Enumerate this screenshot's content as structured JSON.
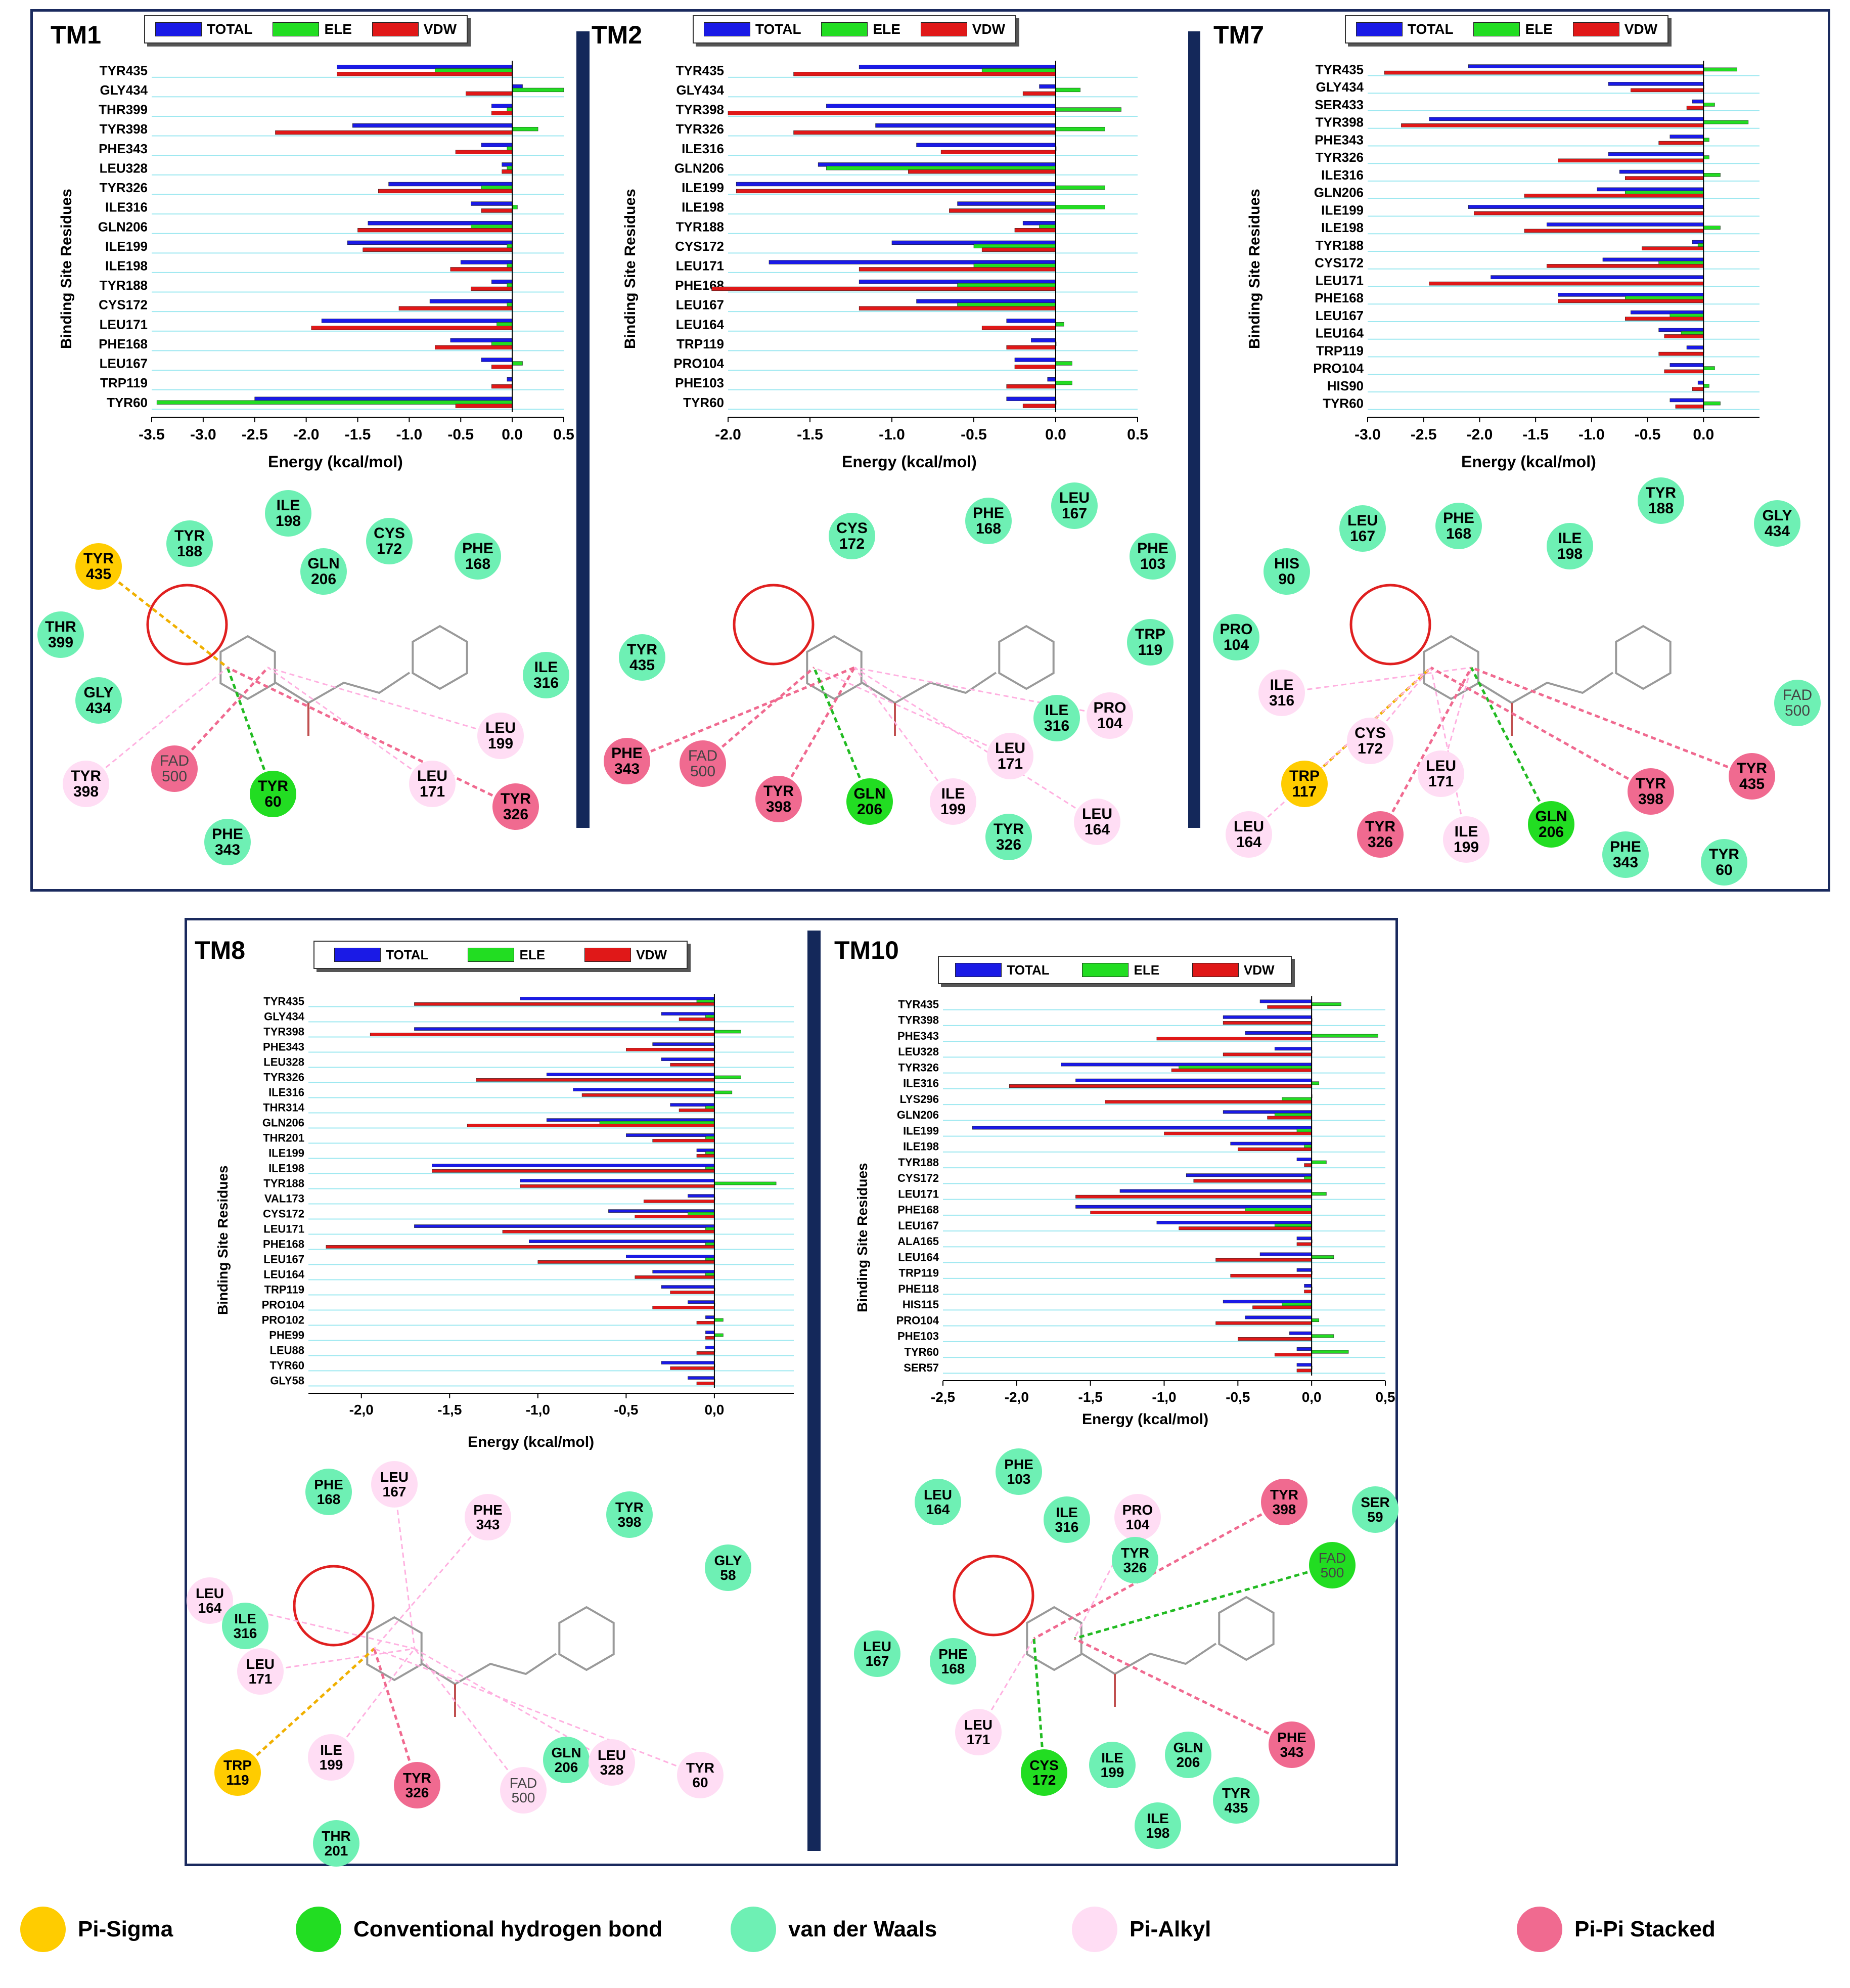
{
  "colors": {
    "total": "#1a1ae6",
    "ele": "#22dd22",
    "vdw": "#e01818",
    "grid": "#9ee8f0",
    "vdw_node": "#6ef0b4",
    "hbond_node": "#22dd22",
    "pisigma_node": "#ffcc00",
    "pialkyl_node": "#ffddf4",
    "pipi_node": "#f06a90"
  },
  "legend_labels": {
    "total": "TOTAL",
    "ele": "ELE",
    "vdw": "VDW"
  },
  "bottom_legend": [
    {
      "label": "Pi-Sigma",
      "color": "#ffcc00"
    },
    {
      "label": "Conventional hydrogen bond",
      "color": "#22dd22"
    },
    {
      "label": "van der Waals",
      "color": "#6ef0b4"
    },
    {
      "label": "Pi-Alkyl",
      "color": "#ffddf4"
    },
    {
      "label": "Pi-Pi Stacked",
      "color": "#f06a90"
    }
  ],
  "chart_data": [
    {
      "title": "TM1",
      "type": "bar",
      "orientation": "horizontal",
      "xlabel": "Energy (kcal/mol)",
      "ylabel": "Binding Site Residues",
      "xlim": [
        -3.5,
        0.5
      ],
      "ticks": [
        "-3.5",
        "-3.0",
        "-2.5",
        "-2.0",
        "-1.5",
        "-1.0",
        "-0.5",
        "0.0",
        "0.5"
      ],
      "categories": [
        "TYR435",
        "GLY434",
        "THR399",
        "TYR398",
        "PHE343",
        "LEU328",
        "TYR326",
        "ILE316",
        "GLN206",
        "ILE199",
        "ILE198",
        "TYR188",
        "CYS172",
        "LEU171",
        "PHE168",
        "LEU167",
        "TRP119",
        "TYR60"
      ],
      "series": [
        {
          "name": "TOTAL",
          "values": [
            -1.7,
            0.1,
            -0.2,
            -1.55,
            -0.3,
            -0.1,
            -1.2,
            -0.4,
            -1.4,
            -1.6,
            -0.5,
            -0.2,
            -0.8,
            -1.85,
            -0.6,
            -0.3,
            -0.05,
            -2.5
          ]
        },
        {
          "name": "ELE",
          "values": [
            -0.75,
            0.5,
            -0.05,
            0.25,
            -0.05,
            -0.05,
            -0.3,
            0.05,
            -0.4,
            -0.05,
            -0.05,
            -0.05,
            -0.05,
            -0.15,
            -0.2,
            0.1,
            0.0,
            -3.45
          ]
        },
        {
          "name": "VDW",
          "values": [
            -1.7,
            -0.45,
            -0.2,
            -2.3,
            -0.55,
            -0.1,
            -1.3,
            -0.3,
            -1.5,
            -1.45,
            -0.6,
            -0.4,
            -1.1,
            -1.95,
            -0.75,
            -0.2,
            -0.2,
            -0.55
          ]
        }
      ],
      "interactions": [
        {
          "res": "TYR",
          "num": "435",
          "type": "ps"
        },
        {
          "res": "TYR",
          "num": "188",
          "type": "vdw"
        },
        {
          "res": "ILE",
          "num": "198",
          "type": "vdw"
        },
        {
          "res": "GLN",
          "num": "206",
          "type": "vdw"
        },
        {
          "res": "CYS",
          "num": "172",
          "type": "vdw"
        },
        {
          "res": "PHE",
          "num": "168",
          "type": "vdw"
        },
        {
          "res": "THR",
          "num": "399",
          "type": "vdw"
        },
        {
          "res": "GLY",
          "num": "434",
          "type": "vdw"
        },
        {
          "res": "ILE",
          "num": "316",
          "type": "vdw"
        },
        {
          "res": "LEU",
          "num": "199",
          "type": "pa"
        },
        {
          "res": "TYR",
          "num": "398",
          "type": "pa"
        },
        {
          "res": "FAD",
          "num": "500",
          "type": "pp"
        },
        {
          "res": "TYR",
          "num": "60",
          "type": "hb"
        },
        {
          "res": "LEU",
          "num": "171",
          "type": "pa"
        },
        {
          "res": "TYR",
          "num": "326",
          "type": "pp"
        },
        {
          "res": "PHE",
          "num": "343",
          "type": "vdw"
        }
      ]
    },
    {
      "title": "TM2",
      "type": "bar",
      "orientation": "horizontal",
      "xlabel": "Energy (kcal/mol)",
      "ylabel": "Binding Site Residues",
      "xlim": [
        -2.0,
        0.5
      ],
      "ticks": [
        "-2.0",
        "-1.5",
        "-1.0",
        "-0.5",
        "0.0",
        "0.5"
      ],
      "categories": [
        "TYR435",
        "GLY434",
        "TYR398",
        "TYR326",
        "ILE316",
        "GLN206",
        "ILE199",
        "ILE198",
        "TYR188",
        "CYS172",
        "LEU171",
        "PHE168",
        "LEU167",
        "LEU164",
        "TRP119",
        "PRO104",
        "PHE103",
        "TYR60"
      ],
      "series": [
        {
          "name": "TOTAL",
          "values": [
            -1.2,
            -0.1,
            -1.4,
            -1.1,
            -0.85,
            -1.45,
            -1.95,
            -0.6,
            -0.2,
            -1.0,
            -1.75,
            -1.2,
            -0.85,
            -0.3,
            -0.15,
            -0.25,
            -0.05,
            -0.3
          ]
        },
        {
          "name": "ELE",
          "values": [
            -0.45,
            0.15,
            0.4,
            0.3,
            0.0,
            -1.4,
            0.3,
            0.3,
            -0.1,
            -0.5,
            -0.5,
            -0.6,
            -0.6,
            0.05,
            0.0,
            0.1,
            0.1,
            0.0
          ]
        },
        {
          "name": "VDW",
          "values": [
            -1.6,
            -0.2,
            -2.0,
            -1.6,
            -0.7,
            -0.9,
            -1.95,
            -0.65,
            -0.25,
            -0.45,
            -1.2,
            -2.1,
            -1.2,
            -0.45,
            -0.3,
            -0.25,
            -0.3,
            -0.2
          ]
        }
      ],
      "interactions": [
        {
          "res": "CYS",
          "num": "172",
          "type": "vdw"
        },
        {
          "res": "PHE",
          "num": "168",
          "type": "vdw"
        },
        {
          "res": "LEU",
          "num": "167",
          "type": "vdw"
        },
        {
          "res": "PHE",
          "num": "103",
          "type": "vdw"
        },
        {
          "res": "TRP",
          "num": "119",
          "type": "vdw"
        },
        {
          "res": "TYR",
          "num": "435",
          "type": "vdw"
        },
        {
          "res": "ILE",
          "num": "316",
          "type": "vdw"
        },
        {
          "res": "PRO",
          "num": "104",
          "type": "pa"
        },
        {
          "res": "LEU",
          "num": "171",
          "type": "pa"
        },
        {
          "res": "PHE",
          "num": "343",
          "type": "pp"
        },
        {
          "res": "FAD",
          "num": "500",
          "type": "pp"
        },
        {
          "res": "TYR",
          "num": "398",
          "type": "pp"
        },
        {
          "res": "GLN",
          "num": "206",
          "type": "hb"
        },
        {
          "res": "ILE",
          "num": "199",
          "type": "pa"
        },
        {
          "res": "TYR",
          "num": "326",
          "type": "vdw"
        },
        {
          "res": "LEU",
          "num": "164",
          "type": "pa"
        }
      ]
    },
    {
      "title": "TM7",
      "type": "bar",
      "orientation": "horizontal",
      "xlabel": "Energy (kcal/mol)",
      "ylabel": "Binding Site Residues",
      "xlim": [
        -3.0,
        0.5
      ],
      "ticks": [
        "-3.0",
        "-2.5",
        "-2.0",
        "-1.5",
        "-1.0",
        "-0.5",
        "0.0"
      ],
      "categories": [
        "TYR435",
        "GLY434",
        "SER433",
        "TYR398",
        "PHE343",
        "TYR326",
        "ILE316",
        "GLN206",
        "ILE199",
        "ILE198",
        "TYR188",
        "CYS172",
        "LEU171",
        "PHE168",
        "LEU167",
        "LEU164",
        "TRP119",
        "PRO104",
        "HIS90",
        "TYR60"
      ],
      "series": [
        {
          "name": "TOTAL",
          "values": [
            -2.1,
            -0.85,
            -0.1,
            -2.45,
            -0.3,
            -0.85,
            -0.75,
            -0.95,
            -2.1,
            -1.4,
            -0.1,
            -0.9,
            -1.9,
            -1.3,
            -0.65,
            -0.4,
            -0.15,
            -0.3,
            -0.05,
            -0.3
          ]
        },
        {
          "name": "ELE",
          "values": [
            0.3,
            0.0,
            0.1,
            0.4,
            0.05,
            0.05,
            0.15,
            -0.7,
            0.0,
            0.15,
            -0.05,
            -0.4,
            0.0,
            -0.7,
            -0.3,
            -0.2,
            0.0,
            0.1,
            0.05,
            0.15
          ]
        },
        {
          "name": "VDW",
          "values": [
            -2.85,
            -0.65,
            -0.15,
            -2.7,
            -0.4,
            -1.3,
            -0.7,
            -1.6,
            -2.05,
            -1.6,
            -0.55,
            -1.4,
            -2.45,
            -1.3,
            -0.7,
            -0.35,
            -0.4,
            -0.35,
            -0.1,
            -0.25
          ]
        }
      ],
      "interactions": [
        {
          "res": "LEU",
          "num": "167",
          "type": "vdw"
        },
        {
          "res": "PHE",
          "num": "168",
          "type": "vdw"
        },
        {
          "res": "TYR",
          "num": "188",
          "type": "vdw"
        },
        {
          "res": "ILE",
          "num": "198",
          "type": "vdw"
        },
        {
          "res": "GLY",
          "num": "434",
          "type": "vdw"
        },
        {
          "res": "HIS",
          "num": "90",
          "type": "vdw"
        },
        {
          "res": "PRO",
          "num": "104",
          "type": "vdw"
        },
        {
          "res": "ILE",
          "num": "316",
          "type": "pa"
        },
        {
          "res": "CYS",
          "num": "172",
          "type": "pa"
        },
        {
          "res": "LEU",
          "num": "171",
          "type": "pa"
        },
        {
          "res": "TRP",
          "num": "117",
          "type": "ps"
        },
        {
          "res": "FAD",
          "num": "500",
          "type": "vdw"
        },
        {
          "res": "LEU",
          "num": "164",
          "type": "pa"
        },
        {
          "res": "TYR",
          "num": "326",
          "type": "pp"
        },
        {
          "res": "ILE",
          "num": "199",
          "type": "pa"
        },
        {
          "res": "GLN",
          "num": "206",
          "type": "hb"
        },
        {
          "res": "TYR",
          "num": "398",
          "type": "pp"
        },
        {
          "res": "TYR",
          "num": "435",
          "type": "pp"
        },
        {
          "res": "PHE",
          "num": "343",
          "type": "vdw"
        },
        {
          "res": "TYR",
          "num": "60",
          "type": "vdw"
        }
      ]
    },
    {
      "title": "TM8",
      "type": "bar",
      "orientation": "horizontal",
      "xlabel": "Energy (kcal/mol)",
      "ylabel": "Binding Site Residues",
      "xlim": [
        -2.3,
        0.45
      ],
      "ticks": [
        "-2,0",
        "-1,5",
        "-1,0",
        "-0,5",
        "0,0"
      ],
      "categories": [
        "TYR435",
        "GLY434",
        "TYR398",
        "PHE343",
        "LEU328",
        "TYR326",
        "ILE316",
        "THR314",
        "GLN206",
        "THR201",
        "ILE199",
        "ILE198",
        "TYR188",
        "VAL173",
        "CYS172",
        "LEU171",
        "PHE168",
        "LEU167",
        "LEU164",
        "TRP119",
        "PRO104",
        "PRO102",
        "PHE99",
        "LEU88",
        "TYR60",
        "GLY58"
      ],
      "series": [
        {
          "name": "TOTAL",
          "values": [
            -1.1,
            -0.3,
            -1.7,
            -0.35,
            -0.3,
            -0.95,
            -0.8,
            -0.25,
            -0.95,
            -0.5,
            -0.1,
            -1.6,
            -1.1,
            -0.15,
            -0.6,
            -1.7,
            -1.05,
            -0.5,
            -0.35,
            -0.3,
            -0.15,
            -0.05,
            -0.05,
            -0.05,
            -0.3,
            -0.15
          ]
        },
        {
          "name": "ELE",
          "values": [
            -0.1,
            -0.05,
            0.15,
            0.0,
            0.0,
            0.15,
            0.1,
            -0.05,
            -0.65,
            -0.05,
            -0.05,
            -0.05,
            0.35,
            0.0,
            -0.15,
            -0.05,
            -0.05,
            -0.05,
            -0.05,
            0.0,
            0.0,
            0.05,
            0.05,
            0.0,
            0.0,
            0.0
          ]
        },
        {
          "name": "VDW",
          "values": [
            -1.7,
            -0.2,
            -1.95,
            -0.5,
            -0.25,
            -1.35,
            -0.75,
            -0.2,
            -1.4,
            -0.35,
            -0.1,
            -1.6,
            -1.1,
            -0.4,
            -0.45,
            -1.2,
            -2.2,
            -1.0,
            -0.45,
            -0.25,
            -0.35,
            -0.1,
            -0.05,
            -0.1,
            -0.25,
            -0.1
          ]
        }
      ],
      "interactions": [
        {
          "res": "PHE",
          "num": "168",
          "type": "vdw"
        },
        {
          "res": "LEU",
          "num": "167",
          "type": "pa"
        },
        {
          "res": "PHE",
          "num": "343",
          "type": "pa"
        },
        {
          "res": "TYR",
          "num": "398",
          "type": "vdw"
        },
        {
          "res": "GLY",
          "num": "58",
          "type": "vdw"
        },
        {
          "res": "LEU",
          "num": "164",
          "type": "pa"
        },
        {
          "res": "ILE",
          "num": "316",
          "type": "vdw"
        },
        {
          "res": "LEU",
          "num": "171",
          "type": "pa"
        },
        {
          "res": "TRP",
          "num": "119",
          "type": "ps"
        },
        {
          "res": "ILE",
          "num": "199",
          "type": "pa"
        },
        {
          "res": "TYR",
          "num": "326",
          "type": "pp"
        },
        {
          "res": "FAD",
          "num": "500",
          "type": "pa"
        },
        {
          "res": "GLN",
          "num": "206",
          "type": "vdw"
        },
        {
          "res": "LEU",
          "num": "328",
          "type": "pa"
        },
        {
          "res": "TYR",
          "num": "60",
          "type": "pa"
        },
        {
          "res": "THR",
          "num": "201",
          "type": "vdw"
        }
      ]
    },
    {
      "title": "TM10",
      "type": "bar",
      "orientation": "horizontal",
      "xlabel": "Energy (kcal/mol)",
      "ylabel": "Binding Site Residues",
      "xlim": [
        -2.5,
        0.5
      ],
      "ticks": [
        "-2,5",
        "-2,0",
        "-1,5",
        "-1,0",
        "-0,5",
        "0,0",
        "0,5"
      ],
      "categories": [
        "TYR435",
        "TYR398",
        "PHE343",
        "LEU328",
        "TYR326",
        "ILE316",
        "LYS296",
        "GLN206",
        "ILE199",
        "ILE198",
        "TYR188",
        "CYS172",
        "LEU171",
        "PHE168",
        "LEU167",
        "ALA165",
        "LEU164",
        "TRP119",
        "PHE118",
        "HIS115",
        "PRO104",
        "PHE103",
        "TYR60",
        "SER57"
      ],
      "series": [
        {
          "name": "TOTAL",
          "values": [
            -0.35,
            -0.6,
            -0.45,
            -0.25,
            -1.7,
            -1.6,
            0.0,
            -0.6,
            -2.3,
            -0.55,
            -0.1,
            -0.85,
            -1.3,
            -1.6,
            -1.05,
            -0.1,
            -0.35,
            -0.1,
            -0.05,
            -0.6,
            -0.45,
            -0.15,
            -0.1,
            -0.1
          ]
        },
        {
          "name": "ELE",
          "values": [
            0.2,
            0.0,
            0.45,
            0.0,
            -0.9,
            0.05,
            -0.2,
            -0.25,
            -0.1,
            -0.05,
            0.1,
            -0.05,
            0.1,
            -0.45,
            -0.25,
            0.0,
            0.15,
            0.0,
            0.0,
            -0.2,
            0.05,
            0.15,
            0.25,
            0.0
          ]
        },
        {
          "name": "VDW",
          "values": [
            -0.3,
            -0.6,
            -1.05,
            -0.6,
            -0.95,
            -2.05,
            -1.4,
            -0.3,
            -1.0,
            -0.5,
            -0.05,
            -0.8,
            -1.6,
            -1.5,
            -0.9,
            -0.1,
            -0.65,
            -0.55,
            -0.05,
            -0.4,
            -0.65,
            -0.5,
            -0.25,
            -0.1
          ]
        }
      ],
      "interactions": [
        {
          "res": "PHE",
          "num": "103",
          "type": "vdw"
        },
        {
          "res": "LEU",
          "num": "164",
          "type": "vdw"
        },
        {
          "res": "ILE",
          "num": "316",
          "type": "vdw"
        },
        {
          "res": "PRO",
          "num": "104",
          "type": "pa"
        },
        {
          "res": "TYR",
          "num": "398",
          "type": "pp"
        },
        {
          "res": "SER",
          "num": "59",
          "type": "vdw"
        },
        {
          "res": "TYR",
          "num": "326",
          "type": "vdw"
        },
        {
          "res": "FAD",
          "num": "500",
          "type": "hb"
        },
        {
          "res": "LEU",
          "num": "167",
          "type": "vdw"
        },
        {
          "res": "PHE",
          "num": "168",
          "type": "vdw"
        },
        {
          "res": "LEU",
          "num": "171",
          "type": "pa"
        },
        {
          "res": "PHE",
          "num": "343",
          "type": "pp"
        },
        {
          "res": "CYS",
          "num": "172",
          "type": "hb"
        },
        {
          "res": "ILE",
          "num": "199",
          "type": "vdw"
        },
        {
          "res": "GLN",
          "num": "206",
          "type": "vdw"
        },
        {
          "res": "TYR",
          "num": "435",
          "type": "vdw"
        },
        {
          "res": "ILE",
          "num": "198",
          "type": "vdw"
        }
      ]
    }
  ]
}
